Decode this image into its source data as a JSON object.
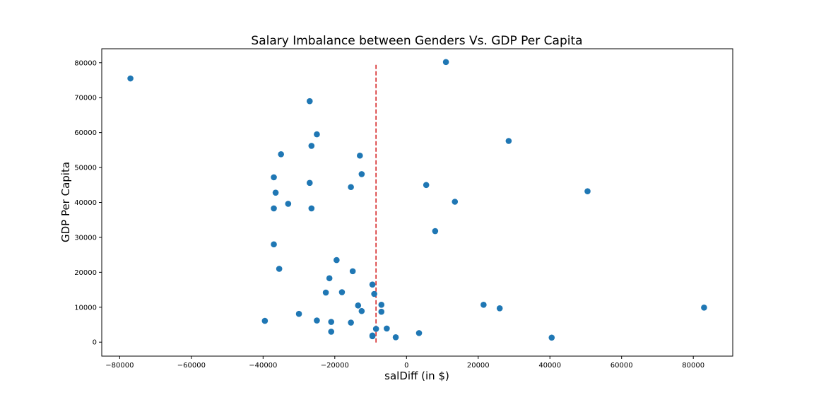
{
  "chart_data": {
    "type": "scatter",
    "title": "Salary Imbalance between Genders Vs. GDP Per Capita",
    "xlabel": "salDiff (in $)",
    "ylabel": "GDP Per Capita",
    "xlim": [
      -85000,
      91000
    ],
    "ylim": [
      -4000,
      84000
    ],
    "xticks": [
      -80000,
      -60000,
      -40000,
      -20000,
      0,
      20000,
      40000,
      60000,
      80000
    ],
    "yticks": [
      0,
      10000,
      20000,
      30000,
      40000,
      50000,
      60000,
      70000,
      80000
    ],
    "grid": false,
    "point_color": "#1f77b4",
    "reference_line": {
      "x": -8500,
      "y_range": [
        -100,
        80000
      ],
      "color": "#d62728",
      "style": "dashed"
    },
    "points": [
      {
        "x": -77000,
        "y": 75500
      },
      {
        "x": 11000,
        "y": 80200
      },
      {
        "x": -27000,
        "y": 69000
      },
      {
        "x": -25000,
        "y": 59500
      },
      {
        "x": -26500,
        "y": 56200
      },
      {
        "x": 28500,
        "y": 57600
      },
      {
        "x": -35000,
        "y": 53800
      },
      {
        "x": -13000,
        "y": 53400
      },
      {
        "x": -12500,
        "y": 48100
      },
      {
        "x": -37000,
        "y": 47200
      },
      {
        "x": -27000,
        "y": 45600
      },
      {
        "x": -15500,
        "y": 44400
      },
      {
        "x": 5500,
        "y": 45000
      },
      {
        "x": 50500,
        "y": 43200
      },
      {
        "x": -36500,
        "y": 42800
      },
      {
        "x": -33000,
        "y": 39600
      },
      {
        "x": -37000,
        "y": 38300
      },
      {
        "x": -26500,
        "y": 38300
      },
      {
        "x": 13500,
        "y": 40200
      },
      {
        "x": 8000,
        "y": 31800
      },
      {
        "x": -37000,
        "y": 28000
      },
      {
        "x": -19500,
        "y": 23500
      },
      {
        "x": -35500,
        "y": 21000
      },
      {
        "x": -15000,
        "y": 20300
      },
      {
        "x": -21500,
        "y": 18300
      },
      {
        "x": -9500,
        "y": 16500
      },
      {
        "x": -22500,
        "y": 14200
      },
      {
        "x": -18000,
        "y": 14300
      },
      {
        "x": -9000,
        "y": 13800
      },
      {
        "x": -13500,
        "y": 10500
      },
      {
        "x": -7000,
        "y": 10700
      },
      {
        "x": 21500,
        "y": 10700
      },
      {
        "x": 26000,
        "y": 9700
      },
      {
        "x": 83000,
        "y": 9900
      },
      {
        "x": -12500,
        "y": 8900
      },
      {
        "x": -7000,
        "y": 8700
      },
      {
        "x": -30000,
        "y": 8100
      },
      {
        "x": -39500,
        "y": 6100
      },
      {
        "x": -25000,
        "y": 6200
      },
      {
        "x": -21000,
        "y": 5800
      },
      {
        "x": -15500,
        "y": 5600
      },
      {
        "x": -8500,
        "y": 3800
      },
      {
        "x": -5500,
        "y": 3900
      },
      {
        "x": -21000,
        "y": 3000
      },
      {
        "x": 3500,
        "y": 2600
      },
      {
        "x": -9500,
        "y": 1900
      },
      {
        "x": -9500,
        "y": 1700
      },
      {
        "x": -3000,
        "y": 1400
      },
      {
        "x": 40500,
        "y": 1300
      }
    ]
  }
}
